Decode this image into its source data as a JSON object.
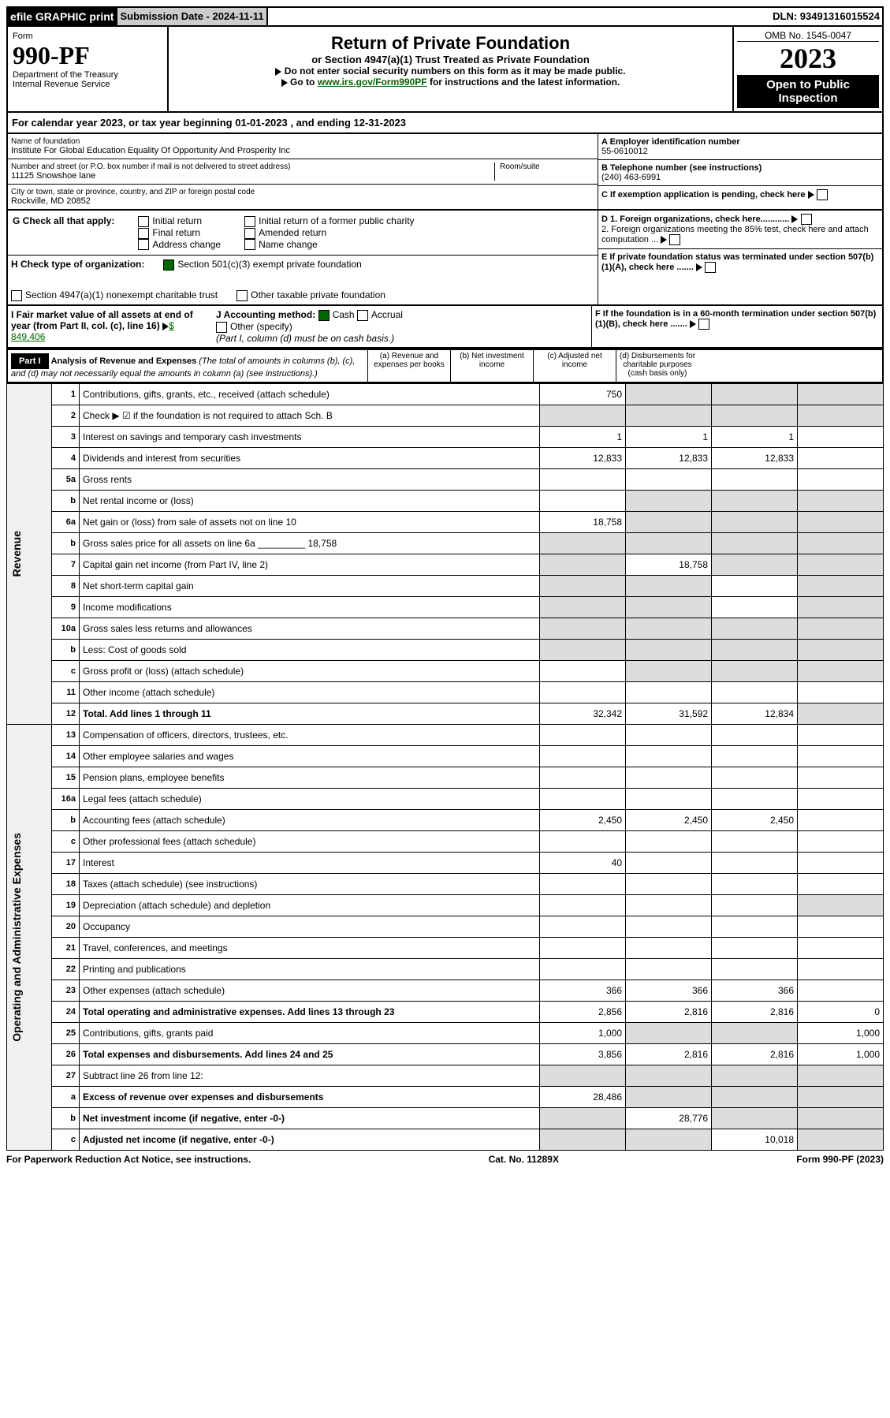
{
  "hdr": {
    "efile": "efile GRAPHIC print",
    "sub": "Submission Date - 2024-11-11",
    "dln": "DLN: 93491316015524"
  },
  "form": {
    "num": "990-PF",
    "form": "Form",
    "dept": "Department of the Treasury",
    "irs": "Internal Revenue Service",
    "title": "Return of Private Foundation",
    "sub": "or Section 4947(a)(1) Trust Treated as Private Foundation",
    "note1": "Do not enter social security numbers on this form as it may be made public.",
    "note2": "Go to ",
    "link": "www.irs.gov/Form990PF",
    "note3": " for instructions and the latest information.",
    "omb": "OMB No. 1545-0047",
    "year": "2023",
    "open": "Open to Public Inspection"
  },
  "cal": {
    "pre": "For calendar year 2023, or tax year beginning ",
    "b": "01-01-2023",
    "mid": " , and ending ",
    "e": "12-31-2023"
  },
  "name": {
    "lab": "Name of foundation",
    "val": "Institute For Global Education Equality Of Opportunity And Prosperity Inc",
    "addr_lab": "Number and street (or P.O. box number if mail is not delivered to street address)",
    "addr": "11125 Snowshoe lane",
    "room": "Room/suite",
    "city_lab": "City or town, state or province, country, and ZIP or foreign postal code",
    "city": "Rockville, MD  20852",
    "a_lab": "A Employer identification number",
    "a": "55-0610012",
    "b_lab": "B Telephone number (see instructions)",
    "b": "(240) 463-6991",
    "c": "C If exemption application is pending, check here",
    "d1": "D 1. Foreign organizations, check here............",
    "d2": "2. Foreign organizations meeting the 85% test, check here and attach computation ...",
    "e": "E  If private foundation status was terminated under section 507(b)(1)(A), check here .......",
    "f": "F  If the foundation is in a 60-month termination under section 507(b)(1)(B), check here ......."
  },
  "g": {
    "lab": "G Check all that apply:",
    "o": [
      "Initial return",
      "Final return",
      "Address change",
      "Initial return of a former public charity",
      "Amended return",
      "Name change"
    ]
  },
  "h": {
    "lab": "H Check type of organization:",
    "o1": "Section 501(c)(3) exempt private foundation",
    "o2": "Section 4947(a)(1) nonexempt charitable trust",
    "o3": "Other taxable private foundation"
  },
  "i": {
    "lab": "I Fair market value of all assets at end of year (from Part II, col. (c), line 16)",
    "v": "$  849,406"
  },
  "j": {
    "lab": "J Accounting method:",
    "c": "Cash",
    "a": "Accrual",
    "o": "Other (specify)",
    "n": "(Part I, column (d) must be on cash basis.)"
  },
  "p1": {
    "part": "Part I",
    "title": "Analysis of Revenue and Expenses",
    "note": "(The total of amounts in columns (b), (c), and (d) may not necessarily equal the amounts in column (a) (see instructions).)",
    "ca": "(a)   Revenue and expenses per books",
    "cb": "(b)   Net investment income",
    "cc": "(c)   Adjusted net income",
    "cd": "(d)   Disbursements for charitable purposes (cash basis only)"
  },
  "rev_label": "Revenue",
  "exp_label": "Operating and Administrative Expenses",
  "rows": [
    {
      "n": "1",
      "d": "Contributions, gifts, grants, etc., received (attach schedule)",
      "a": "750",
      "bs": 1,
      "cs": 1,
      "ds": 1
    },
    {
      "n": "2",
      "d": "Check ▶ ☑ if the foundation is not required to attach Sch. B",
      "allshade": 1
    },
    {
      "n": "3",
      "d": "Interest on savings and temporary cash investments",
      "a": "1",
      "b": "1",
      "c": "1"
    },
    {
      "n": "4",
      "d": "Dividends and interest from securities",
      "a": "12,833",
      "b": "12,833",
      "c": "12,833"
    },
    {
      "n": "5a",
      "d": "Gross rents"
    },
    {
      "n": "b",
      "d": "Net rental income or (loss)",
      "bs": 1,
      "cs": 1,
      "ds": 1
    },
    {
      "n": "6a",
      "d": "Net gain or (loss) from sale of assets not on line 10",
      "a": "18,758",
      "bs": 1,
      "cs": 1,
      "ds": 1
    },
    {
      "n": "b",
      "d": "Gross sales price for all assets on line 6a _________ 18,758",
      "as": 1,
      "bs": 1,
      "cs": 1,
      "ds": 1
    },
    {
      "n": "7",
      "d": "Capital gain net income (from Part IV, line 2)",
      "as": 1,
      "b": "18,758",
      "cs": 1,
      "ds": 1
    },
    {
      "n": "8",
      "d": "Net short-term capital gain",
      "as": 1,
      "bs": 1,
      "ds": 1
    },
    {
      "n": "9",
      "d": "Income modifications",
      "as": 1,
      "bs": 1,
      "ds": 1
    },
    {
      "n": "10a",
      "d": "Gross sales less returns and allowances",
      "as": 1,
      "bs": 1,
      "cs": 1,
      "ds": 1
    },
    {
      "n": "b",
      "d": "Less: Cost of goods sold",
      "as": 1,
      "bs": 1,
      "cs": 1,
      "ds": 1
    },
    {
      "n": "c",
      "d": "Gross profit or (loss) (attach schedule)",
      "bs": 1,
      "cs": 1,
      "ds": 1
    },
    {
      "n": "11",
      "d": "Other income (attach schedule)"
    },
    {
      "n": "12",
      "d": "Total. Add lines 1 through 11",
      "bold": 1,
      "a": "32,342",
      "b": "31,592",
      "c": "12,834",
      "ds": 1
    }
  ],
  "exprows": [
    {
      "n": "13",
      "d": "Compensation of officers, directors, trustees, etc."
    },
    {
      "n": "14",
      "d": "Other employee salaries and wages"
    },
    {
      "n": "15",
      "d": "Pension plans, employee benefits"
    },
    {
      "n": "16a",
      "d": "Legal fees (attach schedule)"
    },
    {
      "n": "b",
      "d": "Accounting fees (attach schedule)",
      "a": "2,450",
      "b": "2,450",
      "c": "2,450"
    },
    {
      "n": "c",
      "d": "Other professional fees (attach schedule)"
    },
    {
      "n": "17",
      "d": "Interest",
      "a": "40"
    },
    {
      "n": "18",
      "d": "Taxes (attach schedule) (see instructions)"
    },
    {
      "n": "19",
      "d": "Depreciation (attach schedule) and depletion",
      "ds": 1
    },
    {
      "n": "20",
      "d": "Occupancy"
    },
    {
      "n": "21",
      "d": "Travel, conferences, and meetings"
    },
    {
      "n": "22",
      "d": "Printing and publications"
    },
    {
      "n": "23",
      "d": "Other expenses (attach schedule)",
      "a": "366",
      "b": "366",
      "c": "366"
    },
    {
      "n": "24",
      "d": "Total operating and administrative expenses. Add lines 13 through 23",
      "bold": 1,
      "a": "2,856",
      "b": "2,816",
      "c": "2,816",
      "dv": "0"
    },
    {
      "n": "25",
      "d": "Contributions, gifts, grants paid",
      "a": "1,000",
      "bs": 1,
      "cs": 1,
      "dv": "1,000"
    },
    {
      "n": "26",
      "d": "Total expenses and disbursements. Add lines 24 and 25",
      "bold": 1,
      "a": "3,856",
      "b": "2,816",
      "c": "2,816",
      "dv": "1,000"
    }
  ],
  "end": [
    {
      "n": "27",
      "d": "Subtract line 26 from line 12:",
      "as": 1,
      "bs": 1,
      "cs": 1,
      "ds": 1
    },
    {
      "n": "a",
      "d": "Excess of revenue over expenses and disbursements",
      "bold": 1,
      "a": "28,486",
      "bs": 1,
      "cs": 1,
      "ds": 1
    },
    {
      "n": "b",
      "d": "Net investment income (if negative, enter -0-)",
      "bold": 1,
      "as": 1,
      "b": "28,776",
      "cs": 1,
      "ds": 1
    },
    {
      "n": "c",
      "d": "Adjusted net income (if negative, enter -0-)",
      "bold": 1,
      "as": 1,
      "bs": 1,
      "c": "10,018",
      "ds": 1
    }
  ],
  "foot": {
    "l": "For Paperwork Reduction Act Notice, see instructions.",
    "m": "Cat. No. 11289X",
    "r": "Form 990-PF (2023)"
  }
}
